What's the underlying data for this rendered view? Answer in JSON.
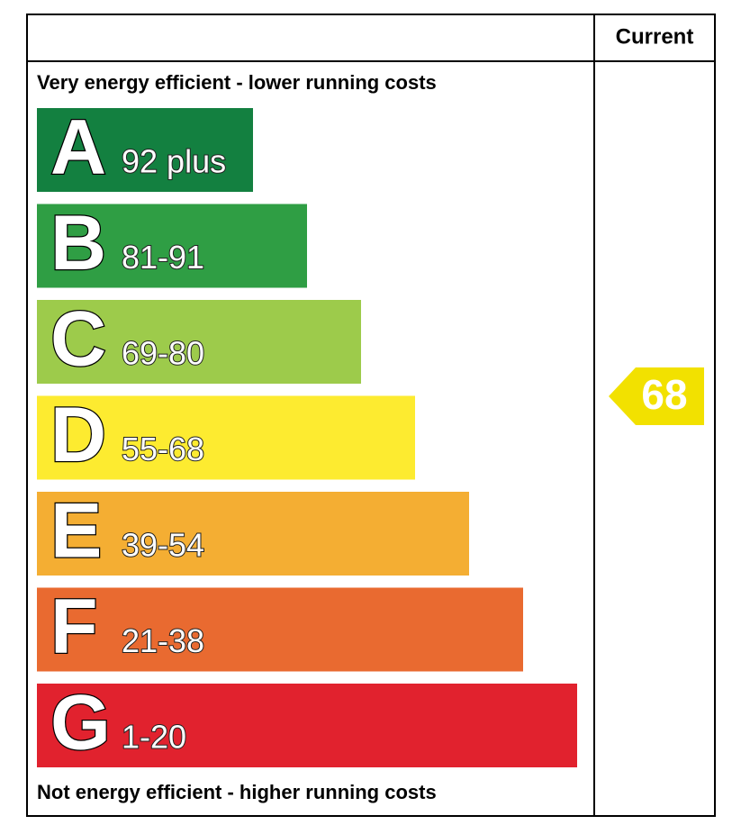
{
  "header": {
    "column": "Current"
  },
  "top_note": "Very energy efficient - lower running costs",
  "bottom_note": "Not energy efficient - higher running costs",
  "bands": [
    {
      "letter": "A",
      "range": "92 plus",
      "color": "#138040"
    },
    {
      "letter": "B",
      "range": "81-91",
      "color": "#2f9e44"
    },
    {
      "letter": "C",
      "range": "69-80",
      "color": "#9dcb4b"
    },
    {
      "letter": "D",
      "range": "55-68",
      "color": "#fdeb30"
    },
    {
      "letter": "E",
      "range": "39-54",
      "color": "#f4ae33"
    },
    {
      "letter": "F",
      "range": "21-38",
      "color": "#e96a30"
    },
    {
      "letter": "G",
      "range": "1-20",
      "color": "#e1222e"
    }
  ],
  "current": {
    "value": 68,
    "color": "#f2e100"
  }
}
